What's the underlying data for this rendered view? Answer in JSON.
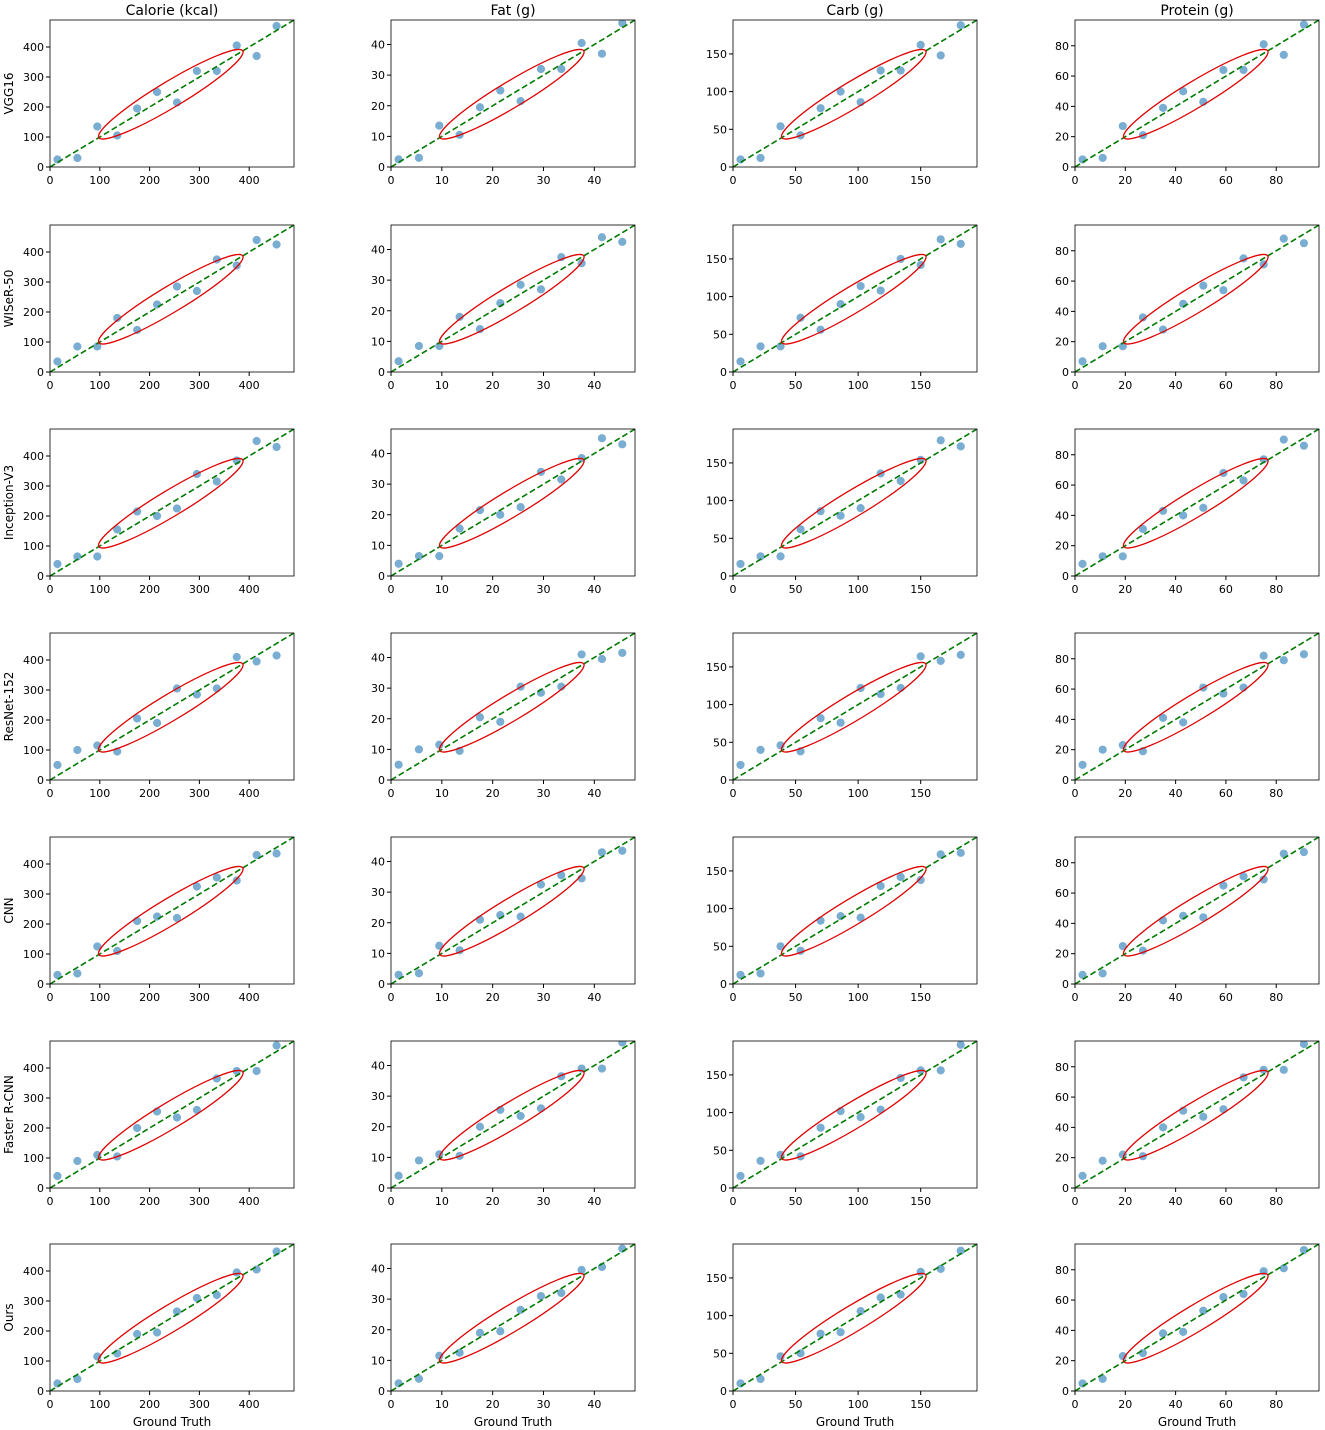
{
  "chart_data": [
    {
      "type": "scatter",
      "title": "Calorie (kcal)",
      "ylabel": "VGG16",
      "color": "#1f77b4",
      "xlim": [
        0,
        490
      ],
      "ylim": [
        0,
        490
      ],
      "xticks": [
        0,
        100,
        200,
        300,
        400
      ],
      "yticks": [
        0,
        100,
        200,
        300,
        400
      ],
      "x": [
        15,
        55,
        95,
        135,
        175,
        215,
        255,
        295,
        335,
        375,
        415,
        455
      ],
      "y": [
        25,
        30,
        135,
        105,
        195,
        250,
        215,
        320,
        320,
        405,
        370,
        470
      ]
    },
    {
      "type": "scatter",
      "title": "Fat (g)",
      "color": "#1f77b4",
      "xlim": [
        0,
        48
      ],
      "ylim": [
        0,
        48
      ],
      "xticks": [
        0,
        10,
        20,
        30,
        40
      ],
      "yticks": [
        0,
        10,
        20,
        30,
        40
      ],
      "x": [
        1.5,
        5.5,
        9.5,
        13.5,
        17.5,
        21.5,
        25.5,
        29.5,
        33.5,
        37.5,
        41.5,
        45.5
      ],
      "y": [
        2.5,
        3,
        13.5,
        10.5,
        19.5,
        25,
        21.5,
        32,
        32,
        40.5,
        37,
        47
      ]
    },
    {
      "type": "scatter",
      "title": "Carb (g)",
      "color": "#1f77b4",
      "xlim": [
        0,
        195
      ],
      "ylim": [
        0,
        195
      ],
      "xticks": [
        0,
        50,
        100,
        150
      ],
      "yticks": [
        0,
        50,
        100,
        150
      ],
      "x": [
        6,
        22,
        38,
        54,
        70,
        86,
        102,
        118,
        134,
        150,
        166,
        182
      ],
      "y": [
        10,
        12,
        54,
        42,
        78,
        100,
        86,
        128,
        128,
        162,
        148,
        188
      ]
    },
    {
      "type": "scatter",
      "title": "Protein (g)",
      "color": "#1f77b4",
      "xlim": [
        0,
        97
      ],
      "ylim": [
        0,
        97
      ],
      "xticks": [
        0,
        20,
        40,
        60,
        80
      ],
      "yticks": [
        0,
        20,
        40,
        60,
        80
      ],
      "x": [
        3,
        11,
        19,
        27,
        35,
        43,
        51,
        59,
        67,
        75,
        83,
        91
      ],
      "y": [
        5,
        6,
        27,
        21,
        39,
        50,
        43,
        64,
        64,
        81,
        74,
        94
      ]
    },
    {
      "type": "scatter",
      "ylabel": "WISeR-50",
      "color": "#1f77b4",
      "xlim": [
        0,
        490
      ],
      "ylim": [
        0,
        490
      ],
      "xticks": [
        0,
        100,
        200,
        300,
        400
      ],
      "yticks": [
        0,
        100,
        200,
        300,
        400
      ],
      "x": [
        15,
        55,
        95,
        135,
        175,
        215,
        255,
        295,
        335,
        375,
        415,
        455
      ],
      "y": [
        35,
        85,
        85,
        180,
        140,
        225,
        285,
        270,
        375,
        355,
        440,
        425
      ]
    },
    {
      "type": "scatter",
      "color": "#1f77b4",
      "xlim": [
        0,
        48
      ],
      "ylim": [
        0,
        48
      ],
      "xticks": [
        0,
        10,
        20,
        30,
        40
      ],
      "yticks": [
        0,
        10,
        20,
        30,
        40
      ],
      "x": [
        1.5,
        5.5,
        9.5,
        13.5,
        17.5,
        21.5,
        25.5,
        29.5,
        33.5,
        37.5,
        41.5,
        45.5
      ],
      "y": [
        3.5,
        8.5,
        8.5,
        18,
        14,
        22.5,
        28.5,
        27,
        37.5,
        35.5,
        44,
        42.5
      ]
    },
    {
      "type": "scatter",
      "color": "#1f77b4",
      "xlim": [
        0,
        195
      ],
      "ylim": [
        0,
        195
      ],
      "xticks": [
        0,
        50,
        100,
        150
      ],
      "yticks": [
        0,
        50,
        100,
        150
      ],
      "x": [
        6,
        22,
        38,
        54,
        70,
        86,
        102,
        118,
        134,
        150,
        166,
        182
      ],
      "y": [
        14,
        34,
        34,
        72,
        56,
        90,
        114,
        108,
        150,
        142,
        176,
        170
      ]
    },
    {
      "type": "scatter",
      "color": "#1f77b4",
      "xlim": [
        0,
        97
      ],
      "ylim": [
        0,
        97
      ],
      "xticks": [
        0,
        20,
        40,
        60,
        80
      ],
      "yticks": [
        0,
        20,
        40,
        60,
        80
      ],
      "x": [
        3,
        11,
        19,
        27,
        35,
        43,
        51,
        59,
        67,
        75,
        83,
        91
      ],
      "y": [
        7,
        17,
        17,
        36,
        28,
        45,
        57,
        54,
        75,
        71,
        88,
        85
      ]
    },
    {
      "type": "scatter",
      "ylabel": "Inception-V3",
      "color": "#1f77b4",
      "xlim": [
        0,
        490
      ],
      "ylim": [
        0,
        490
      ],
      "xticks": [
        0,
        100,
        200,
        300,
        400
      ],
      "yticks": [
        0,
        100,
        200,
        300,
        400
      ],
      "x": [
        15,
        55,
        95,
        135,
        175,
        215,
        255,
        295,
        335,
        375,
        415,
        455
      ],
      "y": [
        40,
        65,
        65,
        155,
        215,
        200,
        225,
        340,
        315,
        385,
        450,
        430
      ]
    },
    {
      "type": "scatter",
      "color": "#1f77b4",
      "xlim": [
        0,
        48
      ],
      "ylim": [
        0,
        48
      ],
      "xticks": [
        0,
        10,
        20,
        30,
        40
      ],
      "yticks": [
        0,
        10,
        20,
        30,
        40
      ],
      "x": [
        1.5,
        5.5,
        9.5,
        13.5,
        17.5,
        21.5,
        25.5,
        29.5,
        33.5,
        37.5,
        41.5,
        45.5
      ],
      "y": [
        4,
        6.5,
        6.5,
        15.5,
        21.5,
        20,
        22.5,
        34,
        31.5,
        38.5,
        45,
        43
      ]
    },
    {
      "type": "scatter",
      "color": "#1f77b4",
      "xlim": [
        0,
        195
      ],
      "ylim": [
        0,
        195
      ],
      "xticks": [
        0,
        50,
        100,
        150
      ],
      "yticks": [
        0,
        50,
        100,
        150
      ],
      "x": [
        6,
        22,
        38,
        54,
        70,
        86,
        102,
        118,
        134,
        150,
        166,
        182
      ],
      "y": [
        16,
        26,
        26,
        62,
        86,
        80,
        90,
        136,
        126,
        154,
        180,
        172
      ]
    },
    {
      "type": "scatter",
      "color": "#1f77b4",
      "xlim": [
        0,
        97
      ],
      "ylim": [
        0,
        97
      ],
      "xticks": [
        0,
        20,
        40,
        60,
        80
      ],
      "yticks": [
        0,
        20,
        40,
        60,
        80
      ],
      "x": [
        3,
        11,
        19,
        27,
        35,
        43,
        51,
        59,
        67,
        75,
        83,
        91
      ],
      "y": [
        8,
        13,
        13,
        31,
        43,
        40,
        45,
        68,
        63,
        77,
        90,
        86
      ]
    },
    {
      "type": "scatter",
      "ylabel": "ResNet-152",
      "color": "#1f77b4",
      "xlim": [
        0,
        490
      ],
      "ylim": [
        0,
        490
      ],
      "xticks": [
        0,
        100,
        200,
        300,
        400
      ],
      "yticks": [
        0,
        100,
        200,
        300,
        400
      ],
      "x": [
        15,
        55,
        95,
        135,
        175,
        215,
        255,
        295,
        335,
        375,
        415,
        455
      ],
      "y": [
        50,
        100,
        115,
        95,
        205,
        190,
        305,
        285,
        305,
        410,
        395,
        415
      ]
    },
    {
      "type": "scatter",
      "color": "#1f77b4",
      "xlim": [
        0,
        48
      ],
      "ylim": [
        0,
        48
      ],
      "xticks": [
        0,
        10,
        20,
        30,
        40
      ],
      "yticks": [
        0,
        10,
        20,
        30,
        40
      ],
      "x": [
        1.5,
        5.5,
        9.5,
        13.5,
        17.5,
        21.5,
        25.5,
        29.5,
        33.5,
        37.5,
        41.5,
        45.5
      ],
      "y": [
        5,
        10,
        11.5,
        9.5,
        20.5,
        19,
        30.5,
        28.5,
        30.5,
        41,
        39.5,
        41.5
      ]
    },
    {
      "type": "scatter",
      "color": "#1f77b4",
      "xlim": [
        0,
        195
      ],
      "ylim": [
        0,
        195
      ],
      "xticks": [
        0,
        50,
        100,
        150
      ],
      "yticks": [
        0,
        50,
        100,
        150
      ],
      "x": [
        6,
        22,
        38,
        54,
        70,
        86,
        102,
        118,
        134,
        150,
        166,
        182
      ],
      "y": [
        20,
        40,
        46,
        38,
        82,
        76,
        122,
        114,
        122,
        164,
        158,
        166
      ]
    },
    {
      "type": "scatter",
      "color": "#1f77b4",
      "xlim": [
        0,
        97
      ],
      "ylim": [
        0,
        97
      ],
      "xticks": [
        0,
        20,
        40,
        60,
        80
      ],
      "yticks": [
        0,
        20,
        40,
        60,
        80
      ],
      "x": [
        3,
        11,
        19,
        27,
        35,
        43,
        51,
        59,
        67,
        75,
        83,
        91
      ],
      "y": [
        10,
        20,
        23,
        19,
        41,
        38,
        61,
        57,
        61,
        82,
        79,
        83
      ]
    },
    {
      "type": "scatter",
      "ylabel": "CNN",
      "color": "#1f77b4",
      "xlim": [
        0,
        490
      ],
      "ylim": [
        0,
        490
      ],
      "xticks": [
        0,
        100,
        200,
        300,
        400
      ],
      "yticks": [
        0,
        100,
        200,
        300,
        400
      ],
      "x": [
        15,
        55,
        95,
        135,
        175,
        215,
        255,
        295,
        335,
        375,
        415,
        455
      ],
      "y": [
        30,
        35,
        125,
        110,
        210,
        225,
        220,
        325,
        355,
        345,
        430,
        435
      ]
    },
    {
      "type": "scatter",
      "color": "#1f77b4",
      "xlim": [
        0,
        48
      ],
      "ylim": [
        0,
        48
      ],
      "xticks": [
        0,
        10,
        20,
        30,
        40
      ],
      "yticks": [
        0,
        10,
        20,
        30,
        40
      ],
      "x": [
        1.5,
        5.5,
        9.5,
        13.5,
        17.5,
        21.5,
        25.5,
        29.5,
        33.5,
        37.5,
        41.5,
        45.5
      ],
      "y": [
        3,
        3.5,
        12.5,
        11,
        21,
        22.5,
        22,
        32.5,
        35.5,
        34.5,
        43,
        43.5
      ]
    },
    {
      "type": "scatter",
      "color": "#1f77b4",
      "xlim": [
        0,
        195
      ],
      "ylim": [
        0,
        195
      ],
      "xticks": [
        0,
        50,
        100,
        150
      ],
      "yticks": [
        0,
        50,
        100,
        150
      ],
      "x": [
        6,
        22,
        38,
        54,
        70,
        86,
        102,
        118,
        134,
        150,
        166,
        182
      ],
      "y": [
        12,
        14,
        50,
        44,
        84,
        90,
        88,
        130,
        142,
        138,
        172,
        174
      ]
    },
    {
      "type": "scatter",
      "color": "#1f77b4",
      "xlim": [
        0,
        97
      ],
      "ylim": [
        0,
        97
      ],
      "xticks": [
        0,
        20,
        40,
        60,
        80
      ],
      "yticks": [
        0,
        20,
        40,
        60,
        80
      ],
      "x": [
        3,
        11,
        19,
        27,
        35,
        43,
        51,
        59,
        67,
        75,
        83,
        91
      ],
      "y": [
        6,
        7,
        25,
        22,
        42,
        45,
        44,
        65,
        71,
        69,
        86,
        87
      ]
    },
    {
      "type": "scatter",
      "ylabel": "Faster R-CNN",
      "color": "#1f77b4",
      "xlim": [
        0,
        490
      ],
      "ylim": [
        0,
        490
      ],
      "xticks": [
        0,
        100,
        200,
        300,
        400
      ],
      "yticks": [
        0,
        100,
        200,
        300,
        400
      ],
      "x": [
        15,
        55,
        95,
        135,
        175,
        215,
        255,
        295,
        335,
        375,
        415,
        455
      ],
      "y": [
        40,
        90,
        110,
        105,
        200,
        255,
        235,
        260,
        365,
        390,
        390,
        475
      ]
    },
    {
      "type": "scatter",
      "color": "#1f77b4",
      "xlim": [
        0,
        48
      ],
      "ylim": [
        0,
        48
      ],
      "xticks": [
        0,
        10,
        20,
        30,
        40
      ],
      "yticks": [
        0,
        10,
        20,
        30,
        40
      ],
      "x": [
        1.5,
        5.5,
        9.5,
        13.5,
        17.5,
        21.5,
        25.5,
        29.5,
        33.5,
        37.5,
        41.5,
        45.5
      ],
      "y": [
        4,
        9,
        11,
        10.5,
        20,
        25.5,
        23.5,
        26,
        36.5,
        39,
        39,
        47.5
      ]
    },
    {
      "type": "scatter",
      "color": "#1f77b4",
      "xlim": [
        0,
        195
      ],
      "ylim": [
        0,
        195
      ],
      "xticks": [
        0,
        50,
        100,
        150
      ],
      "yticks": [
        0,
        50,
        100,
        150
      ],
      "x": [
        6,
        22,
        38,
        54,
        70,
        86,
        102,
        118,
        134,
        150,
        166,
        182
      ],
      "y": [
        16,
        36,
        44,
        42,
        80,
        102,
        94,
        104,
        146,
        156,
        156,
        190
      ]
    },
    {
      "type": "scatter",
      "color": "#1f77b4",
      "xlim": [
        0,
        97
      ],
      "ylim": [
        0,
        97
      ],
      "xticks": [
        0,
        20,
        40,
        60,
        80
      ],
      "yticks": [
        0,
        20,
        40,
        60,
        80
      ],
      "x": [
        3,
        11,
        19,
        27,
        35,
        43,
        51,
        59,
        67,
        75,
        83,
        91
      ],
      "y": [
        8,
        18,
        22,
        21,
        40,
        51,
        47,
        52,
        73,
        78,
        78,
        95
      ]
    },
    {
      "type": "scatter",
      "ylabel": "Ours",
      "xlabel": "Ground Truth",
      "color": "#1f77b4",
      "xlim": [
        0,
        490
      ],
      "ylim": [
        0,
        490
      ],
      "xticks": [
        0,
        100,
        200,
        300,
        400
      ],
      "yticks": [
        0,
        100,
        200,
        300,
        400
      ],
      "x": [
        15,
        55,
        95,
        135,
        175,
        215,
        255,
        295,
        335,
        375,
        415,
        455
      ],
      "y": [
        25,
        40,
        115,
        125,
        190,
        195,
        265,
        310,
        320,
        395,
        405,
        465
      ]
    },
    {
      "type": "scatter",
      "xlabel": "Ground Truth",
      "color": "#1f77b4",
      "xlim": [
        0,
        48
      ],
      "ylim": [
        0,
        48
      ],
      "xticks": [
        0,
        10,
        20,
        30,
        40
      ],
      "yticks": [
        0,
        10,
        20,
        30,
        40
      ],
      "x": [
        1.5,
        5.5,
        9.5,
        13.5,
        17.5,
        21.5,
        25.5,
        29.5,
        33.5,
        37.5,
        41.5,
        45.5
      ],
      "y": [
        2.5,
        4,
        11.5,
        12.5,
        19,
        19.5,
        26.5,
        31,
        32,
        39.5,
        40.5,
        46.5
      ]
    },
    {
      "type": "scatter",
      "xlabel": "Ground Truth",
      "color": "#1f77b4",
      "xlim": [
        0,
        195
      ],
      "ylim": [
        0,
        195
      ],
      "xticks": [
        0,
        50,
        100,
        150
      ],
      "yticks": [
        0,
        50,
        100,
        150
      ],
      "x": [
        6,
        22,
        38,
        54,
        70,
        86,
        102,
        118,
        134,
        150,
        166,
        182
      ],
      "y": [
        10,
        16,
        46,
        50,
        76,
        78,
        106,
        124,
        128,
        158,
        162,
        186
      ]
    },
    {
      "type": "scatter",
      "xlabel": "Ground Truth",
      "color": "#1f77b4",
      "xlim": [
        0,
        97
      ],
      "ylim": [
        0,
        97
      ],
      "xticks": [
        0,
        20,
        40,
        60,
        80
      ],
      "yticks": [
        0,
        20,
        40,
        60,
        80
      ],
      "x": [
        3,
        11,
        19,
        27,
        35,
        43,
        51,
        59,
        67,
        75,
        83,
        91
      ],
      "y": [
        5,
        8,
        23,
        25,
        38,
        39,
        53,
        62,
        64,
        79,
        81,
        93
      ]
    }
  ]
}
